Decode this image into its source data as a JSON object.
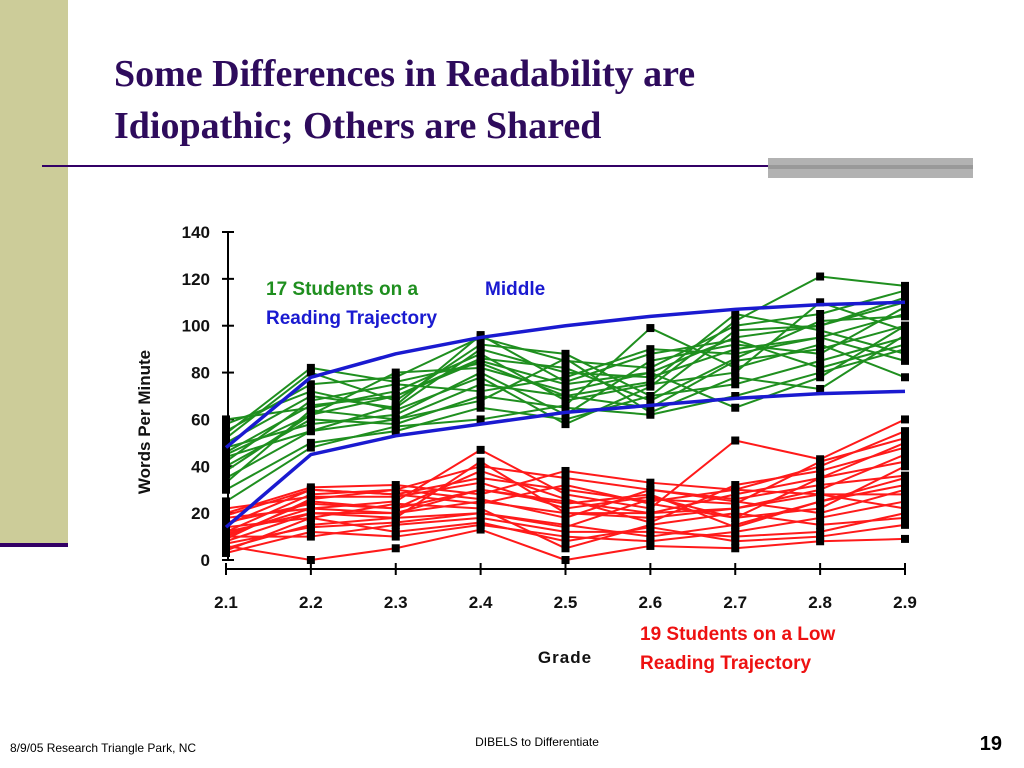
{
  "slide": {
    "title_lines": [
      "Some Differences in Readability are",
      "Idiopathic; Others are Shared"
    ],
    "footer_left": "8/9/05 Research Triangle Park, NC",
    "footer_center": "DIBELS to Differentiate",
    "page_number": "19"
  },
  "chart_data": {
    "type": "line",
    "xlabel": "Grade",
    "ylabel": "Words Per Minute",
    "categories": [
      "2.1",
      "2.2",
      "2.3",
      "2.4",
      "2.5",
      "2.6",
      "2.7",
      "2.8",
      "2.9"
    ],
    "ylim": [
      0,
      140
    ],
    "yticks": [
      0,
      20,
      40,
      60,
      80,
      100,
      120,
      140
    ],
    "annotations": [
      {
        "text": "17 Students on a",
        "color": "#1f8f1f"
      },
      {
        "text": "Middle",
        "color": "#1a1ad0"
      },
      {
        "text": "Reading Trajectory",
        "color": "#1a1ad0"
      },
      {
        "text": "19 Students on a Low",
        "color": "#ee1111"
      },
      {
        "text": "Reading Trajectory",
        "color": "#ee1111"
      }
    ],
    "series": [
      {
        "color": "#1f8f1f",
        "values": [
          45,
          62,
          70,
          85,
          75,
          80,
          95,
          100,
          110
        ]
      },
      {
        "color": "#1f8f1f",
        "values": [
          50,
          70,
          65,
          90,
          80,
          78,
          90,
          95,
          105
        ]
      },
      {
        "color": "#1f8f1f",
        "values": [
          35,
          55,
          60,
          75,
          70,
          65,
          85,
          90,
          100
        ]
      },
      {
        "color": "#1f8f1f",
        "values": [
          55,
          75,
          78,
          95,
          85,
          82,
          100,
          105,
          115
        ]
      },
      {
        "color": "#1f8f1f",
        "values": [
          40,
          60,
          58,
          70,
          65,
          62,
          70,
          80,
          90
        ]
      },
      {
        "color": "#1f8f1f",
        "values": [
          30,
          50,
          55,
          65,
          60,
          70,
          75,
          85,
          95
        ]
      },
      {
        "color": "#1f8f1f",
        "values": [
          60,
          65,
          72,
          88,
          68,
          75,
          80,
          110,
          98
        ]
      },
      {
        "color": "#1f8f1f",
        "values": [
          48,
          58,
          62,
          80,
          62,
          85,
          92,
          88,
          108
        ]
      },
      {
        "color": "#1f8f1f",
        "values": [
          52,
          80,
          68,
          92,
          88,
          70,
          98,
          100,
          112
        ]
      },
      {
        "color": "#1f8f1f",
        "values": [
          42,
          68,
          75,
          72,
          78,
          90,
          88,
          95,
          85
        ]
      },
      {
        "color": "#1f8f1f",
        "values": [
          38,
          62,
          80,
          82,
          72,
          80,
          65,
          78,
          100
        ]
      },
      {
        "color": "#1f8f1f",
        "values": [
          58,
          72,
          64,
          78,
          58,
          74,
          102,
          121,
          117
        ]
      },
      {
        "color": "#1f8f1f",
        "values": [
          25,
          48,
          57,
          60,
          66,
          99,
          82,
          92,
          78
        ]
      },
      {
        "color": "#1f8f1f",
        "values": [
          46,
          66,
          70,
          86,
          82,
          68,
          86,
          102,
          104
        ]
      },
      {
        "color": "#1f8f1f",
        "values": [
          44,
          55,
          66,
          96,
          76,
          88,
          94,
          82,
          92
        ]
      },
      {
        "color": "#1f8f1f",
        "values": [
          54,
          82,
          76,
          84,
          70,
          76,
          105,
          98,
          88
        ]
      },
      {
        "color": "#1f8f1f",
        "values": [
          33,
          64,
          60,
          68,
          86,
          63,
          78,
          73,
          96
        ]
      },
      {
        "color": "#ff1a1a",
        "values": [
          10,
          25,
          22,
          30,
          25,
          20,
          28,
          35,
          50
        ]
      },
      {
        "color": "#ff1a1a",
        "values": [
          15,
          30,
          28,
          35,
          30,
          25,
          30,
          40,
          55
        ]
      },
      {
        "color": "#ff1a1a",
        "values": [
          8,
          20,
          20,
          25,
          20,
          18,
          22,
          30,
          45
        ]
      },
      {
        "color": "#ff1a1a",
        "values": [
          12,
          28,
          30,
          40,
          35,
          30,
          25,
          20,
          30
        ]
      },
      {
        "color": "#ff1a1a",
        "values": [
          5,
          15,
          18,
          20,
          15,
          10,
          15,
          25,
          35
        ]
      },
      {
        "color": "#ff1a1a",
        "values": [
          18,
          22,
          25,
          47,
          28,
          22,
          51,
          43,
          60
        ]
      },
      {
        "color": "#ff1a1a",
        "values": [
          3,
          12,
          10,
          15,
          10,
          8,
          12,
          18,
          25
        ]
      },
      {
        "color": "#ff1a1a",
        "values": [
          20,
          31,
          32,
          28,
          38,
          33,
          30,
          28,
          22
        ]
      },
      {
        "color": "#ff1a1a",
        "values": [
          14,
          18,
          24,
          22,
          5,
          15,
          20,
          15,
          18
        ]
      },
      {
        "color": "#ff1a1a",
        "values": [
          10,
          10,
          15,
          18,
          12,
          12,
          10,
          12,
          20
        ]
      },
      {
        "color": "#ff1a1a",
        "values": [
          22,
          27,
          27,
          33,
          22,
          27,
          18,
          22,
          40
        ]
      },
      {
        "color": "#ff1a1a",
        "values": [
          6,
          0,
          5,
          13,
          0,
          6,
          5,
          8,
          9
        ]
      },
      {
        "color": "#ff1a1a",
        "values": [
          16,
          24,
          22,
          38,
          26,
          16,
          32,
          38,
          48
        ]
      },
      {
        "color": "#ff1a1a",
        "values": [
          12,
          20,
          18,
          42,
          20,
          20,
          22,
          28,
          28
        ]
      },
      {
        "color": "#ff1a1a",
        "values": [
          9,
          26,
          30,
          26,
          18,
          30,
          26,
          32,
          36
        ]
      },
      {
        "color": "#ff1a1a",
        "values": [
          4,
          18,
          12,
          16,
          8,
          14,
          8,
          10,
          15
        ]
      },
      {
        "color": "#ff1a1a",
        "values": [
          19,
          30,
          28,
          24,
          32,
          24,
          18,
          35,
          42
        ]
      },
      {
        "color": "#ff1a1a",
        "values": [
          11,
          22,
          20,
          30,
          24,
          28,
          14,
          25,
          32
        ]
      },
      {
        "color": "#ff1a1a",
        "values": [
          7,
          14,
          16,
          20,
          14,
          26,
          24,
          42,
          52
        ]
      },
      {
        "color": "#1a1ad0",
        "style": "curve",
        "values": [
          48,
          78,
          88,
          95,
          100,
          104,
          107,
          109,
          110
        ]
      },
      {
        "color": "#1a1ad0",
        "style": "curve",
        "values": [
          14,
          45,
          53,
          58,
          63,
          66,
          69,
          71,
          72
        ]
      }
    ]
  }
}
